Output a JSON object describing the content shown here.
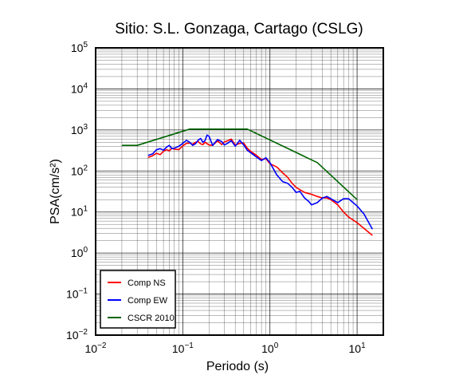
{
  "chart_data": {
    "type": "line",
    "title": "Sitio: S.L. Gonzaga, Cartago (CSLG)",
    "xlabel": "Periodo (s)",
    "ylabel": "PSA(cm/s²)",
    "x_scale": "log",
    "y_scale": "log",
    "xlim": [
      0.01,
      20
    ],
    "ylim": [
      0.01,
      100000
    ],
    "grid": true,
    "x_ticks": [
      {
        "value": 0.01,
        "base": "10",
        "exp": "−2"
      },
      {
        "value": 0.1,
        "base": "10",
        "exp": "−1"
      },
      {
        "value": 1,
        "base": "10",
        "exp": "0"
      },
      {
        "value": 10,
        "base": "10",
        "exp": "1"
      }
    ],
    "y_ticks": [
      {
        "value": 0.01,
        "base": "10",
        "exp": "−2"
      },
      {
        "value": 0.1,
        "base": "10",
        "exp": "−1"
      },
      {
        "value": 1,
        "base": "10",
        "exp": "0"
      },
      {
        "value": 10,
        "base": "10",
        "exp": "1"
      },
      {
        "value": 100,
        "base": "10",
        "exp": "2"
      },
      {
        "value": 1000,
        "base": "10",
        "exp": "3"
      },
      {
        "value": 10000,
        "base": "10",
        "exp": "4"
      },
      {
        "value": 100000,
        "base": "10",
        "exp": "5"
      }
    ],
    "legend_position": "bottom-left",
    "series": [
      {
        "name": "Comp NS",
        "color": "#ff0000",
        "x": [
          0.04,
          0.045,
          0.05,
          0.055,
          0.06,
          0.065,
          0.07,
          0.075,
          0.08,
          0.09,
          0.1,
          0.11,
          0.12,
          0.13,
          0.14,
          0.15,
          0.16,
          0.17,
          0.18,
          0.2,
          0.22,
          0.25,
          0.28,
          0.3,
          0.33,
          0.36,
          0.4,
          0.45,
          0.5,
          0.55,
          0.6,
          0.7,
          0.8,
          0.9,
          1.0,
          1.2,
          1.4,
          1.6,
          1.8,
          2.0,
          2.2,
          2.5,
          2.8,
          3.0,
          3.5,
          4.0,
          4.5,
          5.0,
          6.0,
          7.0,
          8.0,
          10.0,
          12.0,
          15.0
        ],
        "y": [
          215,
          235,
          270,
          250,
          300,
          330,
          310,
          360,
          340,
          330,
          410,
          470,
          480,
          450,
          500,
          520,
          460,
          440,
          500,
          430,
          420,
          540,
          440,
          510,
          550,
          600,
          430,
          470,
          480,
          360,
          300,
          240,
          190,
          200,
          150,
          125,
          90,
          70,
          50,
          40,
          35,
          30,
          28,
          27,
          24,
          22,
          22,
          20,
          15,
          10,
          7.5,
          5.5,
          4.0,
          2.7
        ]
      },
      {
        "name": "Comp EW",
        "color": "#0000ff",
        "x": [
          0.04,
          0.045,
          0.05,
          0.055,
          0.06,
          0.065,
          0.07,
          0.075,
          0.08,
          0.09,
          0.1,
          0.11,
          0.12,
          0.13,
          0.14,
          0.15,
          0.16,
          0.17,
          0.18,
          0.19,
          0.2,
          0.22,
          0.25,
          0.28,
          0.3,
          0.33,
          0.36,
          0.4,
          0.45,
          0.5,
          0.55,
          0.6,
          0.7,
          0.8,
          0.9,
          1.0,
          1.2,
          1.4,
          1.6,
          1.8,
          2.0,
          2.2,
          2.5,
          2.8,
          3.0,
          3.5,
          4.0,
          4.5,
          5.0,
          6.0,
          7.0,
          8.0,
          10.0,
          12.0,
          15.0
        ],
        "y": [
          240,
          260,
          330,
          350,
          320,
          380,
          420,
          350,
          360,
          400,
          470,
          560,
          500,
          420,
          460,
          560,
          620,
          500,
          550,
          750,
          700,
          420,
          580,
          520,
          430,
          480,
          550,
          400,
          560,
          430,
          320,
          280,
          220,
          180,
          210,
          160,
          80,
          55,
          50,
          40,
          30,
          32,
          22,
          18,
          15,
          17,
          22,
          24,
          21,
          17,
          21,
          21,
          14,
          9,
          3.8
        ]
      },
      {
        "name": "CSCR 2010",
        "color": "#006400",
        "x": [
          0.02,
          0.03,
          0.12,
          0.55,
          3.5,
          10.0
        ],
        "y": [
          420,
          420,
          1050,
          1050,
          160,
          20
        ]
      }
    ]
  }
}
